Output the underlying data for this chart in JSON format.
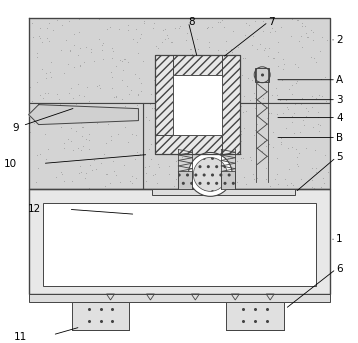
{
  "bg_color": "#ffffff",
  "line_color": "#444444",
  "sand_color": "#d4d4d4",
  "sand_dot_color": "#999999",
  "hatch_fill": "#e0e0e0",
  "white": "#ffffff",
  "gray_light": "#e0e0e0",
  "gray_mid": "#cccccc"
}
